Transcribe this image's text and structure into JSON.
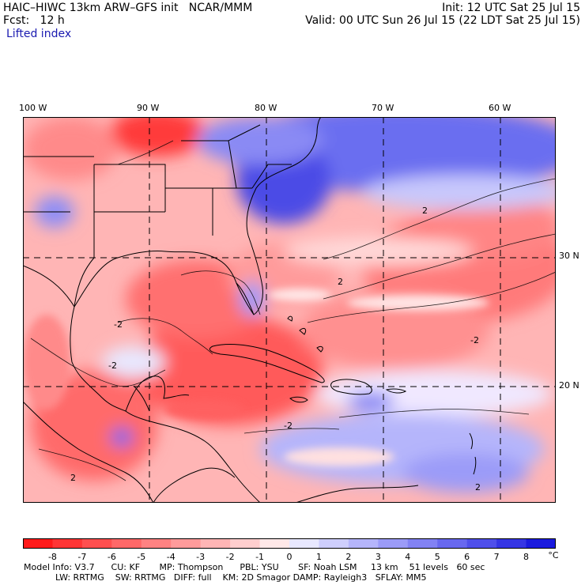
{
  "header": {
    "title_left": "HAIC–HIWC 13km ARW–GFS init   NCAR/MMM",
    "init": "Init: 12 UTC Sat 25 Jul 15",
    "fcst": "Fcst:   12 h",
    "valid": "Valid: 00 UTC Sun 26 Jul 15 (22 LDT Sat 25 Jul 15)",
    "field": "Lifted index"
  },
  "lon_labels": [
    "100 W",
    "90 W",
    "80 W",
    "70 W",
    "60 W"
  ],
  "lat_labels": [
    "30 N",
    "20 N"
  ],
  "contour_labels": [
    "2",
    "2",
    "-2",
    "-2",
    "-2",
    "-2",
    "2",
    "2"
  ],
  "colorbar": {
    "labels": [
      "-8",
      "-7",
      "-6",
      "-5",
      "-4",
      "-3",
      "-2",
      "-1",
      "0",
      "1",
      "2",
      "3",
      "4",
      "5",
      "6",
      "7",
      "8"
    ],
    "unit": "°C",
    "colors": [
      "#ff1a1a",
      "#ff3535",
      "#ff4f4f",
      "#ff6868",
      "#ff8282",
      "#ff9b9b",
      "#ffb5b5",
      "#ffcece",
      "#ffe8e8",
      "#e8e8ff",
      "#cecefd",
      "#b5b5fb",
      "#9b9bf8",
      "#8282f4",
      "#6868ef",
      "#4f4fea",
      "#3535e4",
      "#1a1ade"
    ]
  },
  "footer": {
    "line1": "Model Info: V3.7      CU: KF       MP: Thompson      PBL: YSU       SF: Noah LSM     13 km    51 levels   60 sec",
    "line2": "LW: RRTMG    SW: RRTMG   DIFF: full    KM: 2D Smagor DAMP: Rayleigh3   SFLAY: MM5"
  }
}
